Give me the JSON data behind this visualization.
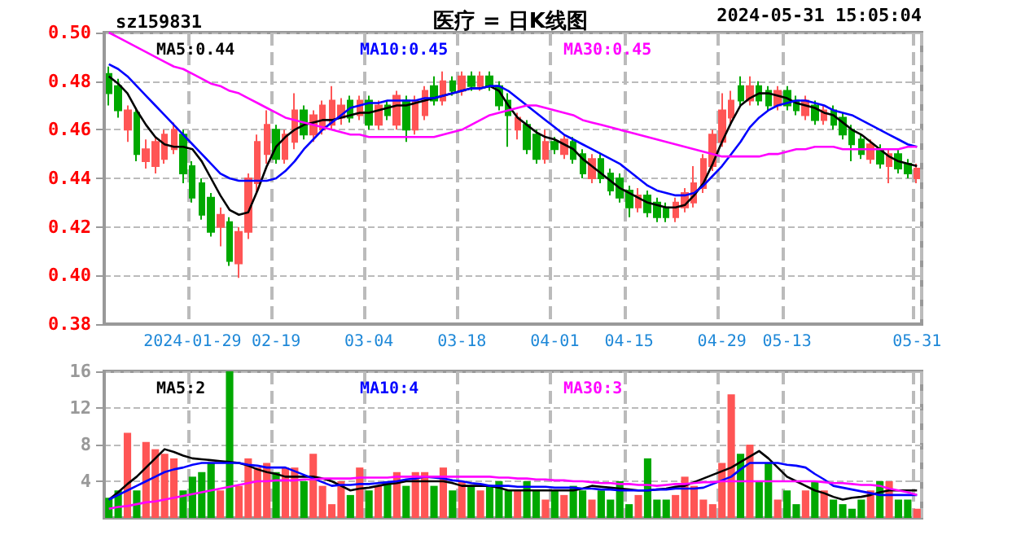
{
  "chart_data": [
    {
      "type": "candlestick",
      "title": "医疗 = 日K线图",
      "subtitle": "sz159831",
      "annotations": [
        "2024-05-31 15:05:04"
      ],
      "categories": [
        null,
        null,
        null,
        null,
        null,
        null,
        null,
        null,
        null,
        "2024-01-29",
        null,
        null,
        null,
        null,
        null,
        null,
        null,
        null,
        "02-19",
        null,
        null,
        null,
        null,
        null,
        null,
        null,
        null,
        null,
        "03-04",
        null,
        null,
        null,
        null,
        null,
        null,
        null,
        null,
        null,
        "03-18",
        null,
        null,
        null,
        null,
        null,
        null,
        null,
        null,
        null,
        "04-01",
        null,
        null,
        null,
        null,
        null,
        null,
        null,
        "04-15",
        null,
        null,
        null,
        null,
        null,
        null,
        null,
        null,
        null,
        "04-29",
        null,
        null,
        null,
        null,
        null,
        null,
        "05-13",
        null,
        null,
        null,
        null,
        null,
        null,
        null,
        null,
        null,
        null,
        null,
        null,
        null,
        "05-31"
      ],
      "ohlc": [
        [
          0.483,
          0.486,
          0.47,
          0.475
        ],
        [
          0.478,
          0.481,
          0.465,
          0.468
        ],
        [
          0.46,
          0.47,
          0.455,
          0.468
        ],
        [
          0.467,
          0.469,
          0.447,
          0.45
        ],
        [
          0.447,
          0.456,
          0.444,
          0.452
        ],
        [
          0.445,
          0.457,
          0.442,
          0.455
        ],
        [
          0.448,
          0.46,
          0.446,
          0.458
        ],
        [
          0.452,
          0.463,
          0.45,
          0.46
        ],
        [
          0.458,
          0.46,
          0.438,
          0.442
        ],
        [
          0.445,
          0.447,
          0.43,
          0.432
        ],
        [
          0.438,
          0.44,
          0.423,
          0.425
        ],
        [
          0.432,
          0.434,
          0.416,
          0.418
        ],
        [
          0.42,
          0.428,
          0.412,
          0.425
        ],
        [
          0.422,
          0.424,
          0.404,
          0.406
        ],
        [
          0.405,
          0.42,
          0.399,
          0.418
        ],
        [
          0.418,
          0.442,
          0.415,
          0.44
        ],
        [
          0.438,
          0.458,
          0.434,
          0.455
        ],
        [
          0.45,
          0.468,
          0.446,
          0.462
        ],
        [
          0.46,
          0.462,
          0.446,
          0.448
        ],
        [
          0.448,
          0.46,
          0.446,
          0.458
        ],
        [
          0.455,
          0.475,
          0.452,
          0.468
        ],
        [
          0.468,
          0.47,
          0.456,
          0.458
        ],
        [
          0.458,
          0.468,
          0.455,
          0.466
        ],
        [
          0.46,
          0.472,
          0.458,
          0.47
        ],
        [
          0.462,
          0.478,
          0.46,
          0.472
        ],
        [
          0.465,
          0.473,
          0.462,
          0.47
        ],
        [
          0.472,
          0.474,
          0.463,
          0.465
        ],
        [
          0.466,
          0.474,
          0.464,
          0.472
        ],
        [
          0.472,
          0.474,
          0.46,
          0.462
        ],
        [
          0.462,
          0.472,
          0.46,
          0.47
        ],
        [
          0.47,
          0.472,
          0.464,
          0.466
        ],
        [
          0.462,
          0.476,
          0.46,
          0.474
        ],
        [
          0.472,
          0.474,
          0.455,
          0.46
        ],
        [
          0.46,
          0.474,
          0.458,
          0.472
        ],
        [
          0.466,
          0.478,
          0.464,
          0.476
        ],
        [
          0.478,
          0.482,
          0.47,
          0.472
        ],
        [
          0.472,
          0.484,
          0.47,
          0.48
        ],
        [
          0.48,
          0.482,
          0.474,
          0.476
        ],
        [
          0.476,
          0.484,
          0.474,
          0.482
        ],
        [
          0.482,
          0.484,
          0.476,
          0.478
        ],
        [
          0.478,
          0.484,
          0.476,
          0.482
        ],
        [
          0.482,
          0.484,
          0.476,
          0.478
        ],
        [
          0.478,
          0.48,
          0.468,
          0.47
        ],
        [
          0.472,
          0.475,
          0.453,
          0.466
        ],
        [
          0.46,
          0.467,
          0.456,
          0.465
        ],
        [
          0.462,
          0.464,
          0.45,
          0.452
        ],
        [
          0.458,
          0.46,
          0.446,
          0.448
        ],
        [
          0.448,
          0.46,
          0.446,
          0.455
        ],
        [
          0.455,
          0.457,
          0.45,
          0.452
        ],
        [
          0.45,
          0.458,
          0.448,
          0.456
        ],
        [
          0.455,
          0.457,
          0.446,
          0.448
        ],
        [
          0.45,
          0.452,
          0.44,
          0.442
        ],
        [
          0.44,
          0.45,
          0.438,
          0.448
        ],
        [
          0.448,
          0.45,
          0.438,
          0.44
        ],
        [
          0.442,
          0.444,
          0.433,
          0.435
        ],
        [
          0.44,
          0.442,
          0.43,
          0.432
        ],
        [
          0.435,
          0.437,
          0.424,
          0.428
        ],
        [
          0.428,
          0.436,
          0.426,
          0.433
        ],
        [
          0.433,
          0.435,
          0.424,
          0.426
        ],
        [
          0.43,
          0.432,
          0.422,
          0.424
        ],
        [
          0.428,
          0.43,
          0.422,
          0.424
        ],
        [
          0.424,
          0.432,
          0.422,
          0.43
        ],
        [
          0.428,
          0.436,
          0.426,
          0.434
        ],
        [
          0.43,
          0.445,
          0.428,
          0.438
        ],
        [
          0.436,
          0.45,
          0.434,
          0.448
        ],
        [
          0.445,
          0.46,
          0.443,
          0.458
        ],
        [
          0.455,
          0.475,
          0.453,
          0.468
        ],
        [
          0.465,
          0.476,
          0.462,
          0.472
        ],
        [
          0.478,
          0.482,
          0.47,
          0.472
        ],
        [
          0.472,
          0.482,
          0.47,
          0.478
        ],
        [
          0.478,
          0.48,
          0.47,
          0.472
        ],
        [
          0.476,
          0.478,
          0.468,
          0.47
        ],
        [
          0.47,
          0.478,
          0.468,
          0.476
        ],
        [
          0.476,
          0.478,
          0.468,
          0.47
        ],
        [
          0.472,
          0.474,
          0.466,
          0.468
        ],
        [
          0.466,
          0.474,
          0.464,
          0.472
        ],
        [
          0.47,
          0.472,
          0.462,
          0.464
        ],
        [
          0.464,
          0.47,
          0.462,
          0.468
        ],
        [
          0.468,
          0.47,
          0.46,
          0.462
        ],
        [
          0.465,
          0.467,
          0.456,
          0.458
        ],
        [
          0.46,
          0.462,
          0.447,
          0.454
        ],
        [
          0.456,
          0.458,
          0.448,
          0.45
        ],
        [
          0.448,
          0.456,
          0.446,
          0.454
        ],
        [
          0.452,
          0.454,
          0.444,
          0.446
        ],
        [
          0.445,
          0.452,
          0.438,
          0.45
        ],
        [
          0.45,
          0.452,
          0.442,
          0.444
        ],
        [
          0.446,
          0.448,
          0.44,
          0.442
        ],
        [
          0.44,
          0.446,
          0.438,
          0.444
        ]
      ],
      "colors": [
        "#00a800",
        "#00a800",
        "#ff5555",
        "#00a800",
        "#ff5555",
        "#ff5555",
        "#ff5555",
        "#ff5555",
        "#00a800",
        "#00a800",
        "#00a800",
        "#00a800",
        "#ff5555",
        "#00a800",
        "#ff5555",
        "#ff5555",
        "#ff5555",
        "#ff5555",
        "#00a800",
        "#ff5555",
        "#ff5555",
        "#00a800",
        "#ff5555",
        "#ff5555",
        "#ff5555",
        "#ff5555",
        "#00a800",
        "#ff5555",
        "#00a800",
        "#ff5555",
        "#00a800",
        "#ff5555",
        "#00a800",
        "#ff5555",
        "#ff5555",
        "#00a800",
        "#ff5555",
        "#00a800",
        "#ff5555",
        "#00a800",
        "#ff5555",
        "#00a800",
        "#00a800",
        "#00a800",
        "#ff5555",
        "#00a800",
        "#00a800",
        "#ff5555",
        "#00a800",
        "#ff5555",
        "#00a800",
        "#00a800",
        "#ff5555",
        "#00a800",
        "#00a800",
        "#00a800",
        "#00a800",
        "#ff5555",
        "#00a800",
        "#00a800",
        "#00a800",
        "#ff5555",
        "#ff5555",
        "#ff5555",
        "#ff5555",
        "#ff5555",
        "#ff5555",
        "#ff5555",
        "#00a800",
        "#ff5555",
        "#00a800",
        "#00a800",
        "#ff5555",
        "#00a800",
        "#00a800",
        "#ff5555",
        "#00a800",
        "#ff5555",
        "#00a800",
        "#00a800",
        "#00a800",
        "#00a800",
        "#ff5555",
        "#00a800",
        "#ff5555",
        "#00a800",
        "#00a800",
        "#ff5555"
      ],
      "series": [
        {
          "type": "line",
          "name": "MA5:0.44",
          "color": "#000000",
          "values": [
            0.482,
            0.479,
            0.475,
            0.468,
            0.462,
            0.457,
            0.454,
            0.453,
            0.453,
            0.452,
            0.447,
            0.44,
            0.433,
            0.427,
            0.425,
            0.426,
            0.435,
            0.445,
            0.453,
            0.457,
            0.46,
            0.462,
            0.463,
            0.464,
            0.464,
            0.465,
            0.466,
            0.467,
            0.467,
            0.468,
            0.469,
            0.47,
            0.47,
            0.471,
            0.472,
            0.473,
            0.474,
            0.475,
            0.476,
            0.477,
            0.477,
            0.478,
            0.476,
            0.47,
            0.465,
            0.462,
            0.459,
            0.457,
            0.456,
            0.454,
            0.452,
            0.448,
            0.445,
            0.442,
            0.439,
            0.436,
            0.434,
            0.432,
            0.43,
            0.429,
            0.428,
            0.428,
            0.429,
            0.433,
            0.438,
            0.446,
            0.455,
            0.463,
            0.47,
            0.473,
            0.475,
            0.475,
            0.474,
            0.473,
            0.471,
            0.47,
            0.469,
            0.467,
            0.466,
            0.463,
            0.46,
            0.458,
            0.455,
            0.452,
            0.449,
            0.447,
            0.446,
            0.445
          ]
        },
        {
          "type": "line",
          "name": "MA10:0.45",
          "color": "#0000ff",
          "values": [
            0.487,
            0.485,
            0.482,
            0.478,
            0.474,
            0.47,
            0.466,
            0.462,
            0.458,
            0.454,
            0.45,
            0.446,
            0.442,
            0.44,
            0.439,
            0.439,
            0.439,
            0.439,
            0.44,
            0.443,
            0.447,
            0.452,
            0.456,
            0.46,
            0.463,
            0.466,
            0.469,
            0.47,
            0.471,
            0.471,
            0.472,
            0.472,
            0.472,
            0.472,
            0.473,
            0.473,
            0.474,
            0.475,
            0.476,
            0.477,
            0.477,
            0.478,
            0.478,
            0.476,
            0.473,
            0.47,
            0.467,
            0.464,
            0.461,
            0.458,
            0.456,
            0.454,
            0.452,
            0.45,
            0.448,
            0.446,
            0.443,
            0.44,
            0.437,
            0.435,
            0.434,
            0.433,
            0.433,
            0.434,
            0.437,
            0.441,
            0.445,
            0.45,
            0.455,
            0.461,
            0.465,
            0.468,
            0.47,
            0.471,
            0.472,
            0.472,
            0.471,
            0.47,
            0.468,
            0.467,
            0.466,
            0.464,
            0.462,
            0.46,
            0.458,
            0.456,
            0.454,
            0.453
          ]
        },
        {
          "type": "line",
          "name": "MA30:0.45",
          "color": "#ff00ff",
          "values": [
            0.5,
            0.498,
            0.496,
            0.494,
            0.492,
            0.49,
            0.488,
            0.486,
            0.485,
            0.483,
            0.481,
            0.479,
            0.478,
            0.476,
            0.475,
            0.473,
            0.471,
            0.469,
            0.467,
            0.465,
            0.464,
            0.463,
            0.462,
            0.461,
            0.46,
            0.459,
            0.458,
            0.458,
            0.457,
            0.457,
            0.457,
            0.457,
            0.457,
            0.457,
            0.457,
            0.457,
            0.458,
            0.459,
            0.46,
            0.462,
            0.464,
            0.466,
            0.467,
            0.468,
            0.469,
            0.47,
            0.47,
            0.469,
            0.468,
            0.467,
            0.466,
            0.464,
            0.463,
            0.462,
            0.461,
            0.46,
            0.459,
            0.458,
            0.457,
            0.456,
            0.455,
            0.454,
            0.453,
            0.452,
            0.451,
            0.45,
            0.449,
            0.449,
            0.449,
            0.449,
            0.449,
            0.45,
            0.45,
            0.451,
            0.452,
            0.452,
            0.453,
            0.453,
            0.453,
            0.452,
            0.452,
            0.452,
            0.452,
            0.452,
            0.452,
            0.452,
            0.453,
            0.453
          ]
        }
      ],
      "ylim": [
        0.38,
        0.5
      ],
      "yticks": [
        {
          "value": 0.38,
          "label": "0.38"
        },
        {
          "value": 0.4,
          "label": "0.40"
        },
        {
          "value": 0.42,
          "label": "0.42"
        },
        {
          "value": 0.44,
          "label": "0.44"
        },
        {
          "value": 0.46,
          "label": "0.46"
        },
        {
          "value": 0.48,
          "label": "0.48"
        },
        {
          "value": 0.5,
          "label": "0.50"
        }
      ],
      "grid": true,
      "legend": "top left",
      "marker": "none"
    },
    {
      "type": "bar",
      "categories": [
        null,
        null,
        null,
        null,
        null,
        null,
        null,
        null,
        null,
        null,
        null,
        null,
        null,
        null,
        null,
        null,
        null,
        null,
        null,
        null,
        null,
        null,
        null,
        null,
        null,
        null,
        null,
        null,
        null,
        null,
        null,
        null,
        null,
        null,
        null,
        null,
        null,
        null,
        null,
        null,
        null,
        null,
        null,
        null,
        null,
        null,
        null,
        null,
        null,
        null,
        null,
        null,
        null,
        null,
        null,
        null,
        null,
        null,
        null,
        null,
        null,
        null,
        null,
        null,
        null,
        null,
        null,
        null,
        null,
        null,
        null,
        null,
        null,
        null,
        null,
        null,
        null,
        null,
        null,
        null,
        null,
        null,
        null,
        null,
        null,
        null,
        null,
        null
      ],
      "values": [
        2.2,
        3,
        9.3,
        3,
        8.3,
        7.5,
        7,
        6.5,
        3,
        4.5,
        5,
        6,
        3,
        16,
        3.5,
        6.5,
        5.5,
        6,
        5,
        5.5,
        5.5,
        4,
        7,
        3.5,
        1.5,
        4,
        2.5,
        5.5,
        3,
        3.5,
        4,
        5,
        3.5,
        5,
        5,
        3.5,
        5.5,
        3,
        4,
        3.5,
        3,
        3.5,
        4,
        3,
        3,
        4,
        3,
        2,
        3,
        2.5,
        3.5,
        3,
        2,
        3,
        2,
        4,
        1.5,
        2.5,
        6.5,
        2,
        2,
        2.5,
        4.5,
        3.5,
        2,
        1.5,
        6,
        13.5,
        7,
        8,
        4,
        6,
        2,
        3,
        1.5,
        3,
        4,
        3,
        2,
        1.5,
        1,
        2,
        3,
        4,
        4,
        2,
        2,
        1
      ],
      "colors": [
        "#00a800",
        "#00a800",
        "#ff5555",
        "#00a800",
        "#ff5555",
        "#ff5555",
        "#ff5555",
        "#ff5555",
        "#00a800",
        "#00a800",
        "#00a800",
        "#00a800",
        "#ff5555",
        "#00a800",
        "#ff5555",
        "#ff5555",
        "#ff5555",
        "#ff5555",
        "#00a800",
        "#ff5555",
        "#ff5555",
        "#00a800",
        "#ff5555",
        "#ff5555",
        "#ff5555",
        "#ff5555",
        "#00a800",
        "#ff5555",
        "#00a800",
        "#ff5555",
        "#00a800",
        "#ff5555",
        "#00a800",
        "#ff5555",
        "#ff5555",
        "#00a800",
        "#ff5555",
        "#00a800",
        "#ff5555",
        "#00a800",
        "#ff5555",
        "#00a800",
        "#00a800",
        "#00a800",
        "#ff5555",
        "#00a800",
        "#00a800",
        "#ff5555",
        "#00a800",
        "#ff5555",
        "#00a800",
        "#00a800",
        "#ff5555",
        "#00a800",
        "#00a800",
        "#00a800",
        "#00a800",
        "#ff5555",
        "#00a800",
        "#00a800",
        "#00a800",
        "#ff5555",
        "#ff5555",
        "#ff5555",
        "#ff5555",
        "#ff5555",
        "#ff5555",
        "#ff5555",
        "#00a800",
        "#ff5555",
        "#00a800",
        "#00a800",
        "#ff5555",
        "#00a800",
        "#00a800",
        "#ff5555",
        "#00a800",
        "#ff5555",
        "#00a800",
        "#00a800",
        "#00a800",
        "#00a800",
        "#ff5555",
        "#00a800",
        "#ff5555",
        "#00a800",
        "#00a800",
        "#ff5555"
      ],
      "series": [
        {
          "type": "line",
          "name": "MA5:2",
          "color": "#000000",
          "values": [
            2,
            2.8,
            3.7,
            4.5,
            5.5,
            6.5,
            7.5,
            7.2,
            6.8,
            6.5,
            6.4,
            6.3,
            6.2,
            6.1,
            6,
            5.7,
            5.3,
            5,
            4.8,
            4.5,
            4.5,
            4.5,
            4.5,
            4.3,
            4,
            3.5,
            3,
            3.2,
            3.3,
            3.5,
            3.7,
            3.8,
            4,
            4,
            4,
            4,
            4,
            3.8,
            3.5,
            3.5,
            3.5,
            3.5,
            3.3,
            3,
            3,
            3,
            3,
            3,
            3,
            3,
            3,
            3.2,
            3.5,
            3.4,
            3.3,
            3.2,
            3.1,
            3,
            3,
            3.1,
            3.2,
            3.4,
            3.5,
            3.9,
            4.3,
            4.7,
            5.1,
            5.5,
            6.1,
            6.7,
            7.3,
            6.5,
            5.5,
            4.5,
            4,
            3.5,
            3,
            2.7,
            2.3,
            2,
            2.2,
            2.3,
            2.5,
            2.8,
            3,
            3,
            3,
            3
          ]
        },
        {
          "type": "line",
          "name": "MA10:4",
          "color": "#0000ff",
          "values": [
            2,
            2.5,
            3,
            3.5,
            4,
            4.5,
            5,
            5.3,
            5.5,
            5.8,
            6,
            6,
            6,
            6,
            6,
            5.8,
            5.7,
            5.5,
            5.5,
            5.5,
            5.1,
            4.7,
            4.3,
            3.9,
            3.5,
            3.6,
            3.6,
            3.7,
            3.7,
            3.8,
            3.9,
            4,
            4.2,
            4.3,
            4.5,
            4.4,
            4.3,
            4.1,
            4,
            3.8,
            3.7,
            3.5,
            3.5,
            3.5,
            3.4,
            3.4,
            3.4,
            3.4,
            3.3,
            3.3,
            3.3,
            3.2,
            3.2,
            3.1,
            3.1,
            3,
            3,
            3,
            3,
            3.1,
            3.1,
            3.2,
            3.2,
            3.2,
            3.3,
            3.7,
            4.1,
            4.5,
            5.3,
            6,
            6,
            6,
            6,
            5.8,
            5.7,
            5.5,
            4.8,
            4.2,
            3.5,
            3.3,
            3.1,
            2.9,
            2.7,
            2.5,
            2.5,
            2.5,
            2.5,
            2.5
          ]
        },
        {
          "type": "line",
          "name": "MA30:3",
          "color": "#ff00ff",
          "values": [
            1,
            1.2,
            1.3,
            1.5,
            1.7,
            1.8,
            2,
            2.2,
            2.4,
            2.6,
            2.8,
            3,
            3.2,
            3.4,
            3.6,
            3.8,
            4,
            4,
            4.1,
            4.1,
            4.1,
            4.2,
            4.2,
            4.3,
            4.3,
            4.3,
            4.3,
            4.4,
            4.4,
            4.4,
            4.4,
            4.5,
            4.5,
            4.5,
            4.5,
            4.5,
            4.5,
            4.5,
            4.5,
            4.5,
            4.5,
            4.5,
            4.4,
            4.4,
            4.3,
            4.3,
            4.2,
            4.2,
            4.1,
            4.1,
            4,
            4,
            3.9,
            3.8,
            3.8,
            3.7,
            3.7,
            3.6,
            3.6,
            3.5,
            3.6,
            3.7,
            3.7,
            3.8,
            3.9,
            3.9,
            4,
            4,
            4,
            4,
            4,
            4,
            4,
            4,
            4,
            4,
            4,
            3.9,
            3.8,
            3.8,
            3.7,
            3.6,
            3.6,
            3.5,
            3.2,
            3,
            2.8,
            2.5
          ]
        }
      ],
      "ylim": [
        0,
        16
      ],
      "yticks": [
        4,
        8,
        12,
        16
      ],
      "tick_labels": "y",
      "grid": true,
      "legend": "top left",
      "marker": "none"
    }
  ]
}
